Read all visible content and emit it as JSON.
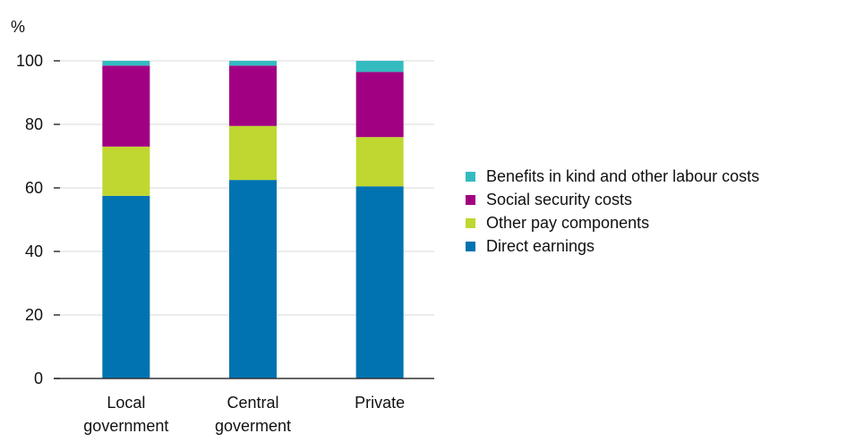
{
  "chart_data": {
    "type": "bar",
    "stacked": true,
    "ylabel": "%",
    "ylim": [
      0,
      100
    ],
    "yticks": [
      0,
      20,
      40,
      60,
      80,
      100
    ],
    "grid": true,
    "legend_position": "right",
    "categories": [
      [
        "Local",
        "government"
      ],
      [
        "Central",
        "goverment"
      ],
      [
        "Private"
      ]
    ],
    "series": [
      {
        "name": "Direct earnings",
        "color": "#0073b0",
        "values": [
          57.5,
          62.5,
          60.5
        ]
      },
      {
        "name": "Other pay components",
        "color": "#bfd730",
        "values": [
          15.5,
          17,
          15.5
        ]
      },
      {
        "name": "Social security costs",
        "color": "#a10083",
        "values": [
          25.5,
          19,
          20.5
        ]
      },
      {
        "name": "Benefits in kind and other labour costs",
        "color": "#33bbc0",
        "values": [
          1.5,
          1.5,
          3.5
        ]
      }
    ],
    "legend_order": [
      "Benefits in kind and other labour costs",
      "Social security costs",
      "Other pay components",
      "Direct earnings"
    ]
  }
}
